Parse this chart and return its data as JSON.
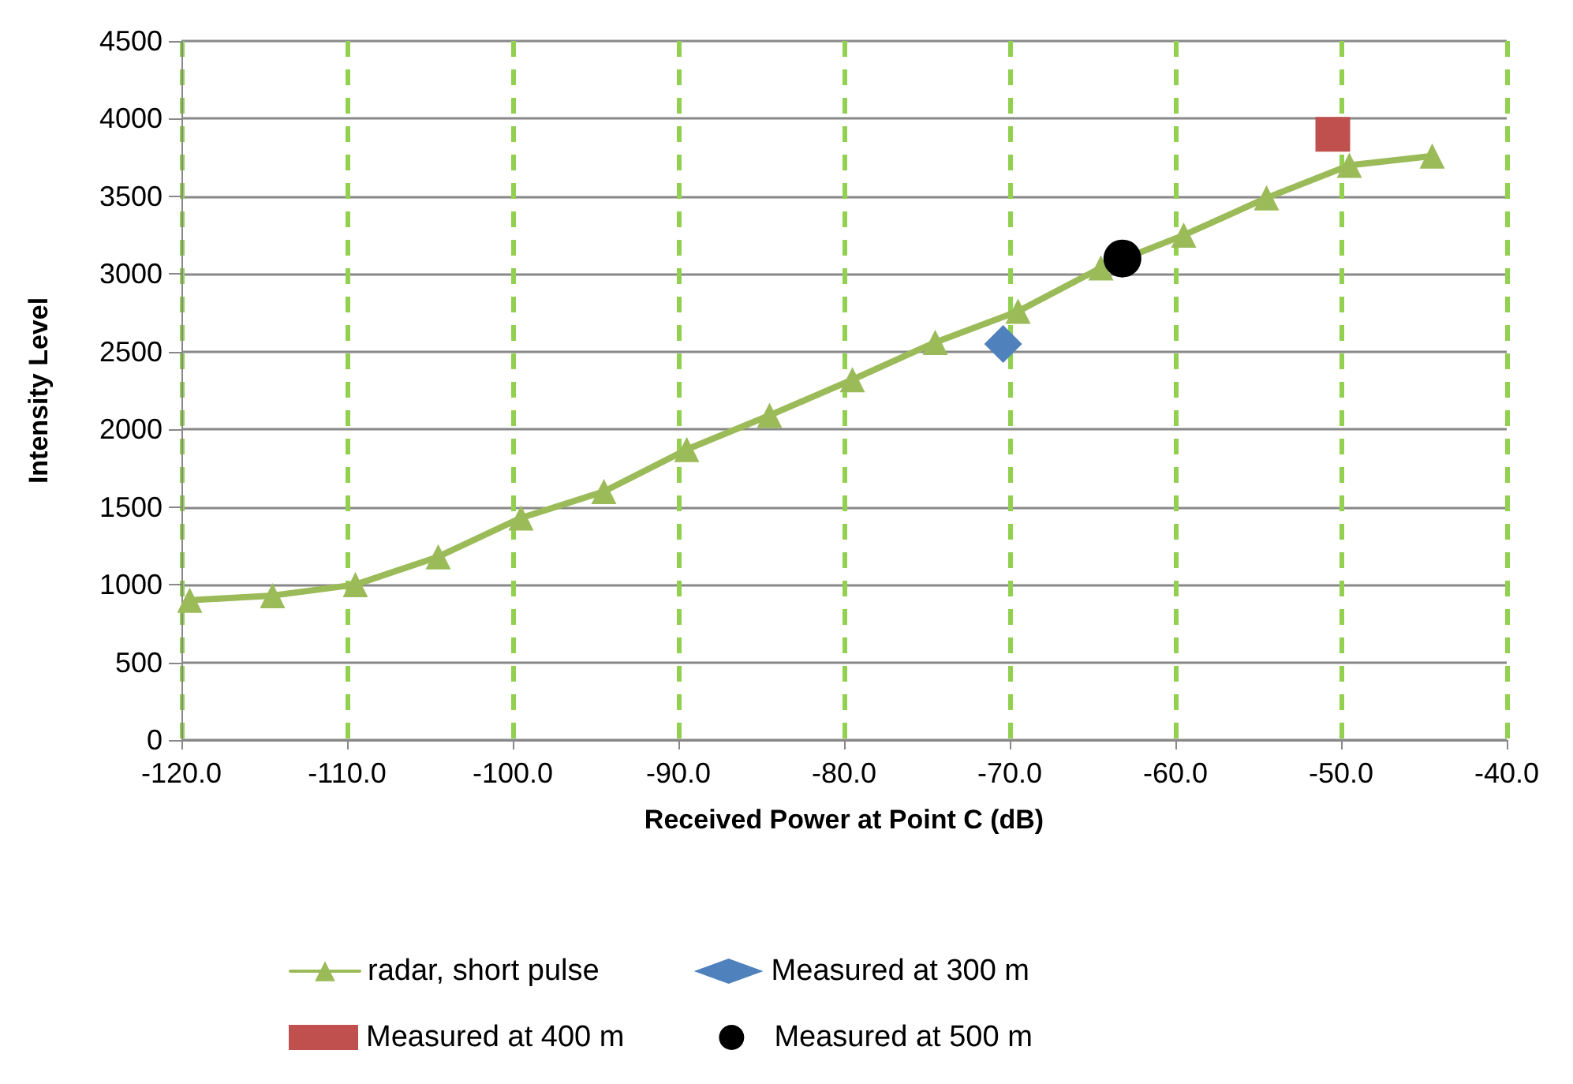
{
  "chart_data": {
    "type": "line",
    "xlabel": "Received Power at Point C (dB)",
    "ylabel": "Intensity Level",
    "xlim": [
      -120,
      -40
    ],
    "xticks": [
      {
        "value": -120,
        "label": "-120.0"
      },
      {
        "value": -110,
        "label": "-110.0"
      },
      {
        "value": -100,
        "label": "-100.0"
      },
      {
        "value": -90,
        "label": "-90.0"
      },
      {
        "value": -80,
        "label": "-80.0"
      },
      {
        "value": -70,
        "label": "-70.0"
      },
      {
        "value": -60,
        "label": "-60.0"
      },
      {
        "value": -50,
        "label": "-50.0"
      },
      {
        "value": -40,
        "label": "-40.0"
      }
    ],
    "ylim": [
      0,
      4500
    ],
    "yticks": [
      0,
      500,
      1000,
      1500,
      2000,
      2500,
      3000,
      3500,
      4000,
      4500
    ],
    "grid": true,
    "legend": "bottom",
    "line_style": "solid",
    "series": [
      {
        "name": "radar, short pulse",
        "marker": "triangle",
        "color": "#9bbb59",
        "x": [
          -119.5,
          -114.5,
          -109.5,
          -104.5,
          -99.5,
          -94.5,
          -89.5,
          -84.5,
          -79.5,
          -74.5,
          -69.5,
          -64.5,
          -59.5,
          -54.5,
          -49.5,
          -44.5
        ],
        "values": [
          900,
          930,
          1000,
          1180,
          1430,
          1600,
          1870,
          2090,
          2320,
          2560,
          2760,
          3040,
          3250,
          3490,
          3700,
          3760
        ]
      },
      {
        "name": "Measured at 300 m",
        "type": "scatter",
        "marker": "diamond",
        "color": "#4f81bd",
        "x": [
          -70.4
        ],
        "values": [
          2550
        ]
      },
      {
        "name": "Measured at 400 m",
        "type": "scatter",
        "marker": "square",
        "color": "#c0504d",
        "x": [
          -50.5
        ],
        "values": [
          3900
        ]
      },
      {
        "name": "Measured at 500 m",
        "type": "scatter",
        "marker": "circle",
        "color": "#000000",
        "x": [
          -63.2
        ],
        "values": [
          3100
        ]
      }
    ]
  }
}
